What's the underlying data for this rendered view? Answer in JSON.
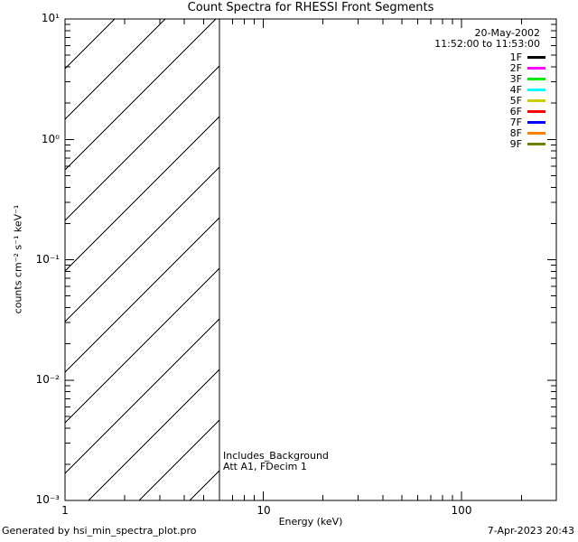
{
  "title": "Count Spectra for RHESSI Front Segments",
  "legend": {
    "date": "20-May-2002",
    "time_range": "11:52:00 to 11:53:00"
  },
  "annotations": {
    "line1": "Includes_Background",
    "line2": "Att A1, FDecim 1"
  },
  "footer": {
    "generated_by": "Generated by hsi_min_spectra_plot.pro",
    "timestamp": "7-Apr-2023 20:43"
  },
  "chart_data": {
    "type": "line",
    "title": "Count Spectra for RHESSI Front Segments",
    "xlabel": "Energy (keV)",
    "ylabel": "counts cm⁻² s⁻¹ keV⁻¹",
    "xscale": "log",
    "yscale": "log",
    "xlim": [
      1,
      300
    ],
    "ylim": [
      0.001,
      10
    ],
    "x_tick_labels": [
      "1",
      "10",
      "100"
    ],
    "y_tick_labels": [
      "10⁻³",
      "10⁻²",
      "10⁻¹",
      "10⁰",
      "10¹"
    ],
    "grid": false,
    "legend_position": "top-right",
    "series": [
      {
        "label": "1F",
        "color": "#000000",
        "values": []
      },
      {
        "label": "2F",
        "color": "#ff00ff",
        "values": []
      },
      {
        "label": "3F",
        "color": "#00ee00",
        "values": []
      },
      {
        "label": "4F",
        "color": "#00ffff",
        "values": []
      },
      {
        "label": "5F",
        "color": "#cccc00",
        "values": []
      },
      {
        "label": "6F",
        "color": "#ff0000",
        "values": []
      },
      {
        "label": "7F",
        "color": "#0000ff",
        "values": []
      },
      {
        "label": "8F",
        "color": "#ff8000",
        "values": []
      },
      {
        "label": "9F",
        "color": "#6f8000",
        "values": []
      }
    ],
    "hatched_region": {
      "x_start": 1,
      "x_end": 6,
      "pattern": "diagonal-45deg",
      "spacing_px": 56
    },
    "attenuator_line_x": 6,
    "notes": "No spectra curves are drawn in the plot area; only the diagonal-hatched region from 1 to 6 keV, a vertical line at 6 keV, and the legend are visible."
  }
}
